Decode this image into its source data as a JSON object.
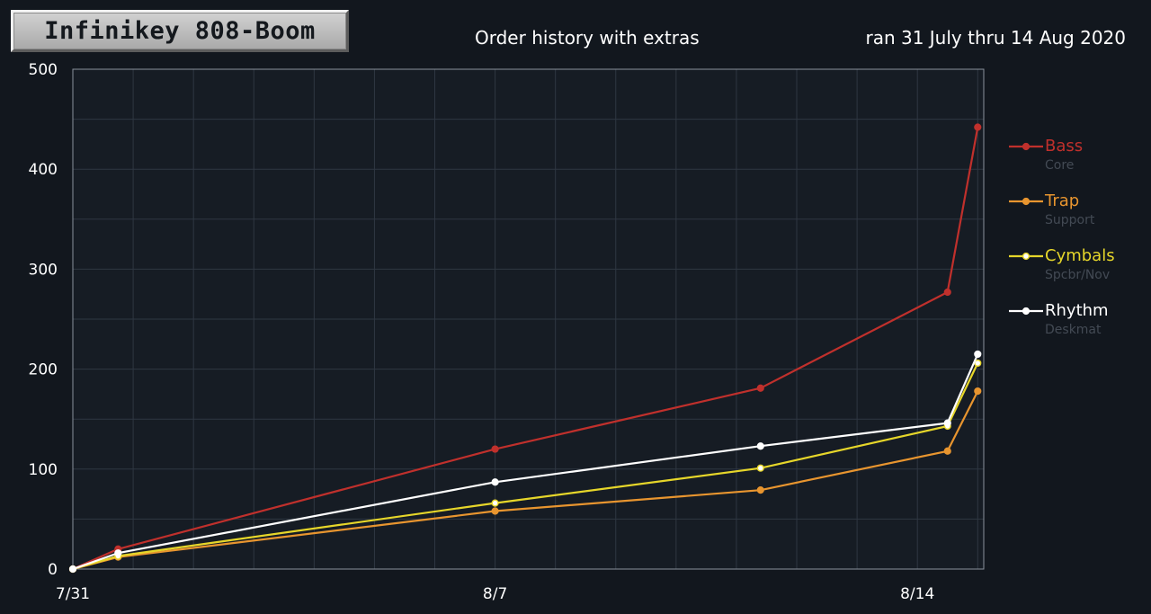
{
  "header": {
    "brand": "Infinikey 808-Boom",
    "subtitle": "Order history with extras",
    "date_range": "ran 31 July thru 14 Aug 2020"
  },
  "chart_data": {
    "type": "line",
    "title": "Order history with extras",
    "x_tick_labels": [
      "7/31",
      "8/7",
      "8/14"
    ],
    "x_ticks_day": [
      0,
      7,
      14
    ],
    "xlim_day": [
      0,
      15.1
    ],
    "ylim": [
      0,
      500
    ],
    "y_ticks": [
      0,
      100,
      200,
      300,
      400,
      500
    ],
    "grid": true,
    "legend_position": "right",
    "series": [
      {
        "name": "Bass",
        "sub": "Core",
        "color": "#c0302c",
        "point_fill": "#c0302c",
        "x_day": [
          0,
          0.75,
          7,
          11.4,
          14.5,
          15.0
        ],
        "values": [
          0,
          20,
          120,
          181,
          277,
          442
        ]
      },
      {
        "name": "Trap",
        "sub": "Support",
        "color": "#e8952f",
        "point_fill": "#e8952f",
        "x_day": [
          0,
          0.75,
          7,
          11.4,
          14.5,
          15.0
        ],
        "values": [
          0,
          12,
          58,
          79,
          118,
          178
        ]
      },
      {
        "name": "Cymbals",
        "sub": "Spcbr/Nov",
        "color": "#e6d62a",
        "point_fill": "#ffffff",
        "x_day": [
          0,
          0.75,
          7,
          11.4,
          14.5,
          15.0
        ],
        "values": [
          0,
          13,
          66,
          101,
          143,
          206
        ]
      },
      {
        "name": "Rhythm",
        "sub": "Deskmat",
        "color": "#ffffff",
        "point_fill": "#ffffff",
        "x_day": [
          0,
          0.75,
          7,
          11.4,
          14.5,
          15.0
        ],
        "values": [
          0,
          16,
          87,
          123,
          146,
          215
        ]
      }
    ]
  }
}
